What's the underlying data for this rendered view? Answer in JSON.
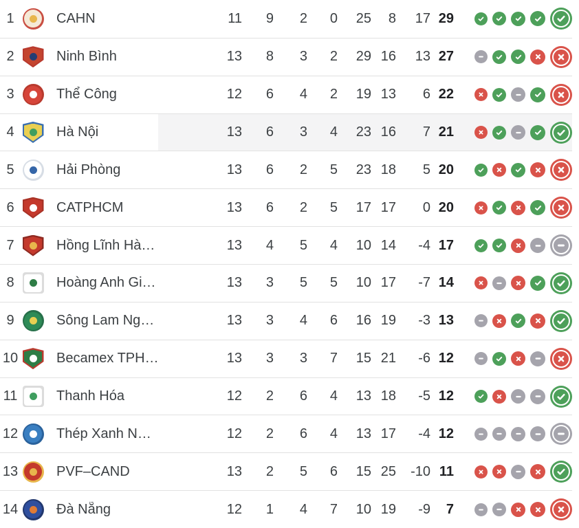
{
  "widget": "league-standings-table",
  "ui_colors": {
    "win": "#4DA05A",
    "draw": "#A5A4AC",
    "loss": "#D9534A",
    "row_highlight": "#F4F4F5",
    "separator": "#E1E1E1",
    "text": "#3C4043",
    "points_text": "#202124"
  },
  "form_legend": {
    "W": "win",
    "D": "draw",
    "L": "loss"
  },
  "table": {
    "stat_keys": [
      "mp",
      "w",
      "d",
      "l",
      "gf",
      "ga",
      "gd",
      "pts"
    ],
    "rows": [
      {
        "pos": 1,
        "team": "CAHN",
        "mp": 11,
        "w": 9,
        "d": 2,
        "l": 0,
        "gf": 25,
        "ga": 8,
        "gd": 17,
        "pts": 29,
        "form": [
          "W",
          "W",
          "W",
          "W",
          "W"
        ],
        "highlighted": false,
        "logo": {
          "shape": "circle",
          "outer": "#C94F43",
          "bg": "#F5E9D6",
          "inner": "#E8B64C"
        }
      },
      {
        "pos": 2,
        "team": "Ninh Bình",
        "mp": 13,
        "w": 8,
        "d": 3,
        "l": 2,
        "gf": 29,
        "ga": 16,
        "gd": 13,
        "pts": 27,
        "form": [
          "D",
          "W",
          "W",
          "L",
          "L"
        ],
        "highlighted": false,
        "logo": {
          "shape": "shield",
          "outer": "#B93A2E",
          "bg": "#C4452F",
          "inner": "#243D73"
        }
      },
      {
        "pos": 3,
        "team": "Thể Công",
        "mp": 12,
        "w": 6,
        "d": 4,
        "l": 2,
        "gf": 19,
        "ga": 13,
        "gd": 6,
        "pts": 22,
        "form": [
          "L",
          "W",
          "D",
          "W",
          "L"
        ],
        "highlighted": false,
        "logo": {
          "shape": "circle",
          "outer": "#B93A2E",
          "bg": "#D6453A",
          "inner": "#FFFFFF"
        }
      },
      {
        "pos": 4,
        "team": "Hà Nội",
        "mp": 13,
        "w": 6,
        "d": 3,
        "l": 4,
        "gf": 23,
        "ga": 16,
        "gd": 7,
        "pts": 21,
        "form": [
          "L",
          "W",
          "D",
          "W",
          "W"
        ],
        "highlighted": true,
        "logo": {
          "shape": "shield",
          "outer": "#3A6FB0",
          "bg": "#E9CF52",
          "inner": "#3F9E5F"
        }
      },
      {
        "pos": 5,
        "team": "Hải Phòng",
        "mp": 13,
        "w": 6,
        "d": 2,
        "l": 5,
        "gf": 23,
        "ga": 18,
        "gd": 5,
        "pts": 20,
        "form": [
          "W",
          "L",
          "W",
          "L",
          "L"
        ],
        "highlighted": false,
        "logo": {
          "shape": "circle",
          "outer": "#D7DDE5",
          "bg": "#FFFFFF",
          "inner": "#3566A8"
        }
      },
      {
        "pos": 6,
        "team": "CATPHCM",
        "mp": 13,
        "w": 6,
        "d": 2,
        "l": 5,
        "gf": 17,
        "ga": 17,
        "gd": 0,
        "pts": 20,
        "form": [
          "L",
          "W",
          "L",
          "W",
          "L"
        ],
        "highlighted": false,
        "logo": {
          "shape": "shield",
          "outer": "#A93226",
          "bg": "#C4392C",
          "inner": "#FFFFFF"
        }
      },
      {
        "pos": 7,
        "team": "Hồng Lĩnh Hà…",
        "mp": 13,
        "w": 4,
        "d": 5,
        "l": 4,
        "gf": 10,
        "ga": 14,
        "gd": -4,
        "pts": 17,
        "form": [
          "W",
          "W",
          "L",
          "D",
          "D"
        ],
        "highlighted": false,
        "logo": {
          "shape": "shield",
          "outer": "#8E2A22",
          "bg": "#C4392C",
          "inner": "#E8B64C"
        }
      },
      {
        "pos": 8,
        "team": "Hoàng Anh Gi…",
        "mp": 13,
        "w": 3,
        "d": 5,
        "l": 5,
        "gf": 10,
        "ga": 17,
        "gd": -7,
        "pts": 14,
        "form": [
          "L",
          "D",
          "L",
          "W",
          "W"
        ],
        "highlighted": false,
        "logo": {
          "shape": "square",
          "outer": "#DCDCDC",
          "bg": "#FFFFFF",
          "inner": "#2E7D46"
        }
      },
      {
        "pos": 9,
        "team": "Sông Lam Ng…",
        "mp": 13,
        "w": 3,
        "d": 4,
        "l": 6,
        "gf": 16,
        "ga": 19,
        "gd": -3,
        "pts": 13,
        "form": [
          "D",
          "L",
          "W",
          "L",
          "W"
        ],
        "highlighted": false,
        "logo": {
          "shape": "circle",
          "outer": "#27704A",
          "bg": "#2E8B57",
          "inner": "#E9CF52"
        }
      },
      {
        "pos": 10,
        "team": "Becamex TPH…",
        "mp": 13,
        "w": 3,
        "d": 3,
        "l": 7,
        "gf": 15,
        "ga": 21,
        "gd": -6,
        "pts": 12,
        "form": [
          "D",
          "W",
          "L",
          "D",
          "L"
        ],
        "highlighted": false,
        "logo": {
          "shape": "shield",
          "outer": "#B93A2E",
          "bg": "#2E7D46",
          "inner": "#FFFFFF"
        }
      },
      {
        "pos": 11,
        "team": "Thanh Hóa",
        "mp": 12,
        "w": 2,
        "d": 6,
        "l": 4,
        "gf": 13,
        "ga": 18,
        "gd": -5,
        "pts": 12,
        "form": [
          "W",
          "L",
          "D",
          "D",
          "W"
        ],
        "highlighted": false,
        "logo": {
          "shape": "square",
          "outer": "#DCDCDC",
          "bg": "#FFFFFF",
          "inner": "#3F9E5F"
        }
      },
      {
        "pos": 12,
        "team": "Thép Xanh N…",
        "mp": 12,
        "w": 2,
        "d": 6,
        "l": 4,
        "gf": 13,
        "ga": 17,
        "gd": -4,
        "pts": 12,
        "form": [
          "D",
          "D",
          "D",
          "D",
          "D"
        ],
        "highlighted": false,
        "logo": {
          "shape": "circle",
          "outer": "#2A629C",
          "bg": "#3A7FC1",
          "inner": "#FFFFFF"
        }
      },
      {
        "pos": 13,
        "team": "PVF–CAND",
        "mp": 13,
        "w": 2,
        "d": 5,
        "l": 6,
        "gf": 15,
        "ga": 25,
        "gd": -10,
        "pts": 11,
        "form": [
          "L",
          "L",
          "D",
          "L",
          "W"
        ],
        "highlighted": false,
        "logo": {
          "shape": "circle",
          "outer": "#E8B64C",
          "bg": "#C4392C",
          "inner": "#E8B64C"
        }
      },
      {
        "pos": 14,
        "team": "Đà Nẵng",
        "mp": 12,
        "w": 1,
        "d": 4,
        "l": 7,
        "gf": 10,
        "ga": 19,
        "gd": -9,
        "pts": 7,
        "form": [
          "D",
          "D",
          "L",
          "L",
          "L"
        ],
        "highlighted": false,
        "logo": {
          "shape": "circle",
          "outer": "#22386F",
          "bg": "#2F4F9E",
          "inner": "#E07B35"
        }
      }
    ]
  }
}
